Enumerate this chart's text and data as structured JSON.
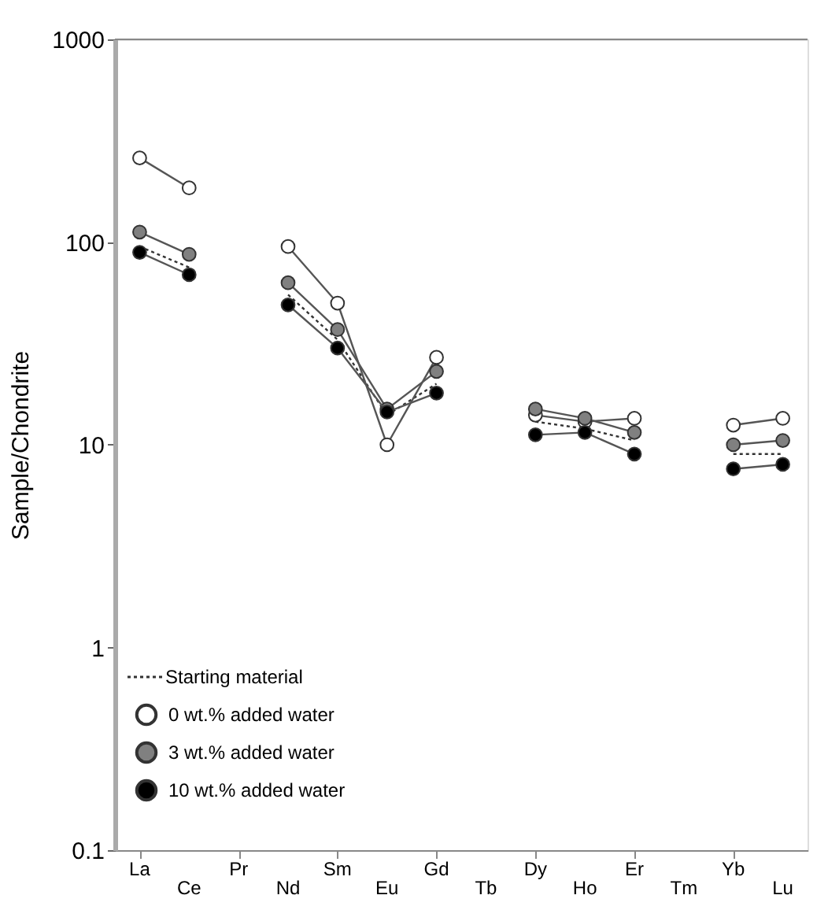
{
  "chart_data": {
    "type": "line",
    "ylabel": "Sample/Chondrite",
    "categories": [
      "La",
      "Ce",
      "Pr",
      "Nd",
      "Sm",
      "Eu",
      "Gd",
      "Tb",
      "Dy",
      "Ho",
      "Er",
      "Tm",
      "Yb",
      "Lu"
    ],
    "series": [
      {
        "name": "Starting material",
        "color": "#333333",
        "marker": "none",
        "line_style": "dotted",
        "values": [
          95,
          75,
          null,
          55,
          33,
          14,
          20,
          null,
          13,
          12,
          10.5,
          null,
          9,
          9
        ]
      },
      {
        "name": "0 wt.% added water",
        "color": "#ffffff",
        "marker": "circle",
        "line_style": "solid",
        "values": [
          260,
          185,
          null,
          95,
          50,
          10,
          27,
          null,
          14,
          13,
          13.5,
          null,
          12.5,
          13.5
        ]
      },
      {
        "name": "3 wt.% added water",
        "color": "#808080",
        "marker": "circle",
        "line_style": "solid",
        "values": [
          112,
          87,
          null,
          63,
          37,
          15,
          23,
          null,
          15,
          13.5,
          11.5,
          null,
          10,
          10.5
        ]
      },
      {
        "name": "10 wt.% added water",
        "color": "#000000",
        "marker": "circle",
        "line_style": "solid",
        "values": [
          89,
          69,
          null,
          49,
          30,
          14.5,
          18,
          null,
          11.2,
          11.5,
          9,
          null,
          7.6,
          8
        ]
      }
    ],
    "log": true,
    "ylim": [
      0.1,
      1000
    ],
    "yticks": [
      0.1,
      1,
      10,
      100,
      1000
    ],
    "grid": false,
    "legend": "bottom left"
  }
}
